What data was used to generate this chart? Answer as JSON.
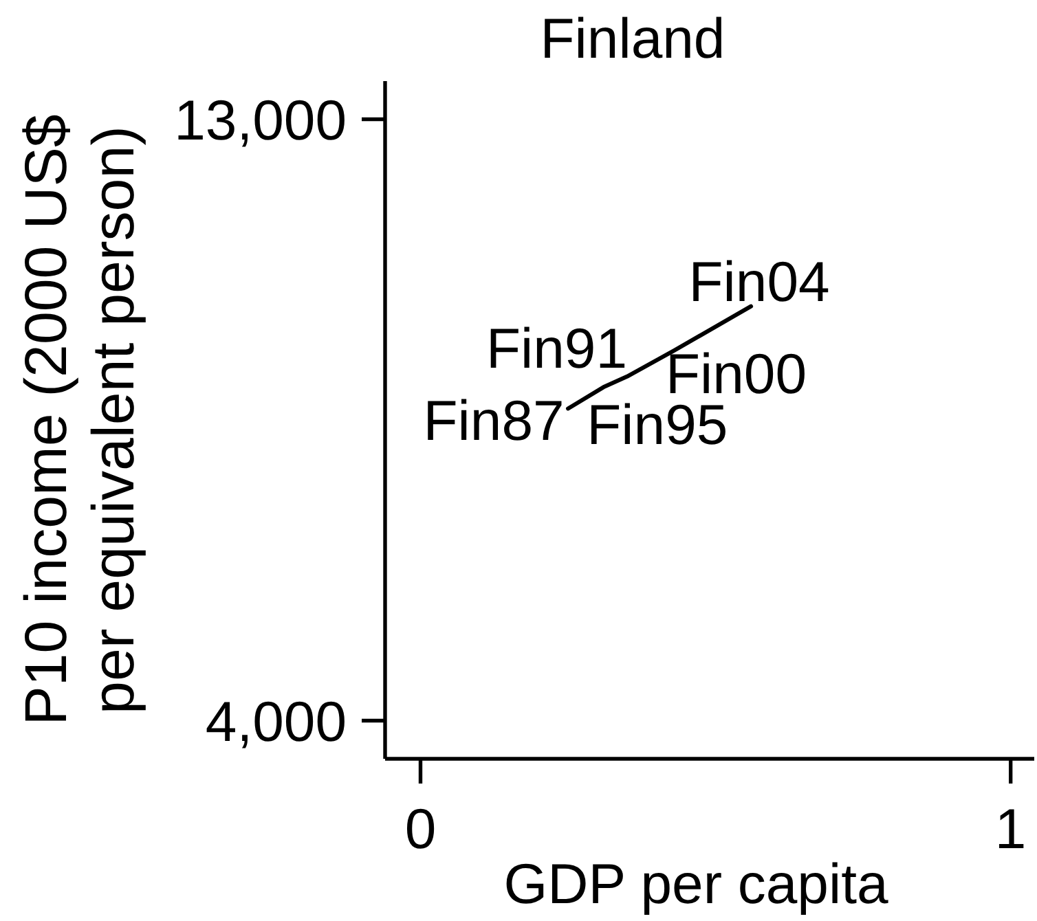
{
  "chart_data": {
    "type": "line",
    "title": "Finland",
    "xlabel": "GDP per capita",
    "ylabel": "P10 income (2000 US$\nper equivalent person)",
    "x": [
      0.25,
      0.31,
      0.35,
      0.43,
      0.56
    ],
    "values": [
      8670,
      8990,
      9150,
      9540,
      10200
    ],
    "color": "#000000",
    "xlim": [
      -0.06,
      1.04
    ],
    "xticks": [
      0,
      1
    ],
    "ylim": [
      3430,
      13570
    ],
    "yticks": [
      {
        "value": 4000,
        "label": "4,000"
      },
      {
        "value": 13000,
        "label": "13,000"
      }
    ],
    "marker": "none",
    "line_style": "solid",
    "annotations": [
      {
        "text": "Fin87",
        "x": 0.25,
        "y": 8670
      },
      {
        "text": "Fin91",
        "x": 0.31,
        "y": 8990
      },
      {
        "text": "Fin95",
        "x": 0.35,
        "y": 9150
      },
      {
        "text": "Fin00",
        "x": 0.43,
        "y": 9540
      },
      {
        "text": "Fin04",
        "x": 0.56,
        "y": 10200
      }
    ]
  }
}
